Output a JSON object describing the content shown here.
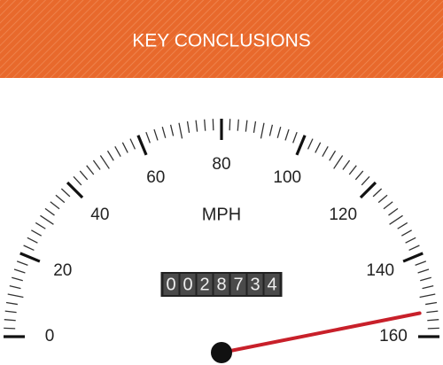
{
  "chart_data": {
    "type": "gauge",
    "title": "KEY CONCLUSIONS",
    "unit_label": "MPH",
    "odometer": [
      "0",
      "0",
      "2",
      "8",
      "7",
      "3",
      "4"
    ],
    "value": 150,
    "lim": [
      0,
      160
    ],
    "ticks": [
      0,
      20,
      40,
      60,
      80,
      100,
      120,
      140,
      160
    ]
  }
}
